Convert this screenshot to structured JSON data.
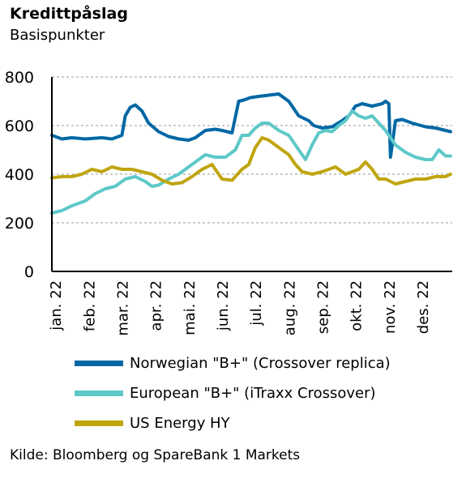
{
  "title": "Kredittpåslag",
  "subtitle": "Basispunkter",
  "source": "Kilde: Bloomberg og SpareBank 1 Markets",
  "chart_data": {
    "type": "line",
    "ylim": [
      0,
      800
    ],
    "y_ticks": [
      0,
      200,
      400,
      600,
      800
    ],
    "x_ticks": [
      "jan. 22",
      "feb. 22",
      "mar. 22",
      "apr. 22",
      "mai. 22",
      "jun. 22",
      "jul. 22",
      "aug. 22",
      "sep. 22",
      "okt. 22",
      "nov. 22",
      "des. 22"
    ],
    "xlim": [
      0,
      12
    ],
    "grid": "horizontal dashed",
    "legend_position": "bottom",
    "series": [
      {
        "name": "Norwegian \"B+\" (Crossover replica)",
        "color": "#0067a5",
        "x": [
          0,
          0.3,
          0.6,
          1.0,
          1.5,
          1.8,
          2.1,
          2.2,
          2.35,
          2.5,
          2.7,
          2.9,
          3.2,
          3.5,
          3.8,
          4.1,
          4.3,
          4.6,
          4.9,
          5.1,
          5.4,
          5.6,
          5.75,
          5.95,
          6.2,
          6.5,
          6.8,
          7.1,
          7.4,
          7.7,
          7.85,
          8.1,
          8.4,
          8.7,
          8.9,
          9.1,
          9.3,
          9.6,
          9.9,
          10.0,
          10.1,
          10.15,
          10.3,
          10.5,
          10.8,
          11.2,
          11.5,
          11.8,
          11.95
        ],
        "values": [
          560,
          545,
          550,
          545,
          550,
          545,
          560,
          640,
          675,
          685,
          660,
          610,
          575,
          555,
          545,
          540,
          550,
          580,
          585,
          580,
          570,
          700,
          705,
          715,
          720,
          725,
          730,
          700,
          640,
          620,
          600,
          590,
          595,
          620,
          640,
          680,
          690,
          680,
          690,
          700,
          690,
          470,
          620,
          625,
          610,
          595,
          590,
          580,
          575
        ]
      },
      {
        "name": "European \"B+\" (iTraxx Crossover)",
        "color": "#5ec8c8",
        "x": [
          0,
          0.3,
          0.6,
          1.0,
          1.3,
          1.6,
          1.9,
          2.2,
          2.5,
          2.8,
          3.0,
          3.2,
          3.5,
          3.8,
          4.0,
          4.3,
          4.6,
          4.9,
          5.2,
          5.5,
          5.7,
          5.9,
          6.1,
          6.3,
          6.5,
          6.8,
          7.1,
          7.3,
          7.5,
          7.6,
          7.8,
          8.0,
          8.2,
          8.4,
          8.6,
          8.8,
          9.0,
          9.2,
          9.4,
          9.6,
          9.8,
          10.0,
          10.3,
          10.6,
          10.9,
          11.2,
          11.4,
          11.6,
          11.8,
          11.95
        ],
        "values": [
          240,
          250,
          270,
          290,
          320,
          340,
          350,
          380,
          390,
          370,
          350,
          355,
          380,
          400,
          420,
          450,
          480,
          470,
          470,
          500,
          560,
          560,
          590,
          610,
          610,
          580,
          560,
          520,
          480,
          460,
          520,
          570,
          580,
          575,
          600,
          620,
          660,
          640,
          630,
          640,
          610,
          580,
          520,
          490,
          470,
          460,
          460,
          500,
          475,
          475
        ]
      },
      {
        "name": "US Energy HY",
        "color": "#c0a510",
        "x": [
          0,
          0.3,
          0.6,
          0.9,
          1.2,
          1.5,
          1.8,
          2.1,
          2.4,
          2.7,
          3.0,
          3.3,
          3.6,
          3.9,
          4.2,
          4.5,
          4.8,
          5.1,
          5.4,
          5.7,
          5.9,
          6.1,
          6.3,
          6.5,
          6.8,
          7.1,
          7.3,
          7.5,
          7.8,
          8.1,
          8.3,
          8.5,
          8.8,
          9.0,
          9.2,
          9.4,
          9.6,
          9.8,
          10.0,
          10.3,
          10.6,
          10.9,
          11.2,
          11.5,
          11.8,
          11.95
        ],
        "values": [
          385,
          390,
          390,
          400,
          420,
          410,
          430,
          420,
          420,
          410,
          400,
          375,
          360,
          365,
          390,
          420,
          440,
          380,
          375,
          420,
          440,
          510,
          550,
          540,
          510,
          480,
          440,
          410,
          400,
          410,
          420,
          430,
          400,
          410,
          420,
          450,
          420,
          380,
          380,
          360,
          370,
          380,
          380,
          390,
          390,
          400
        ]
      }
    ]
  }
}
